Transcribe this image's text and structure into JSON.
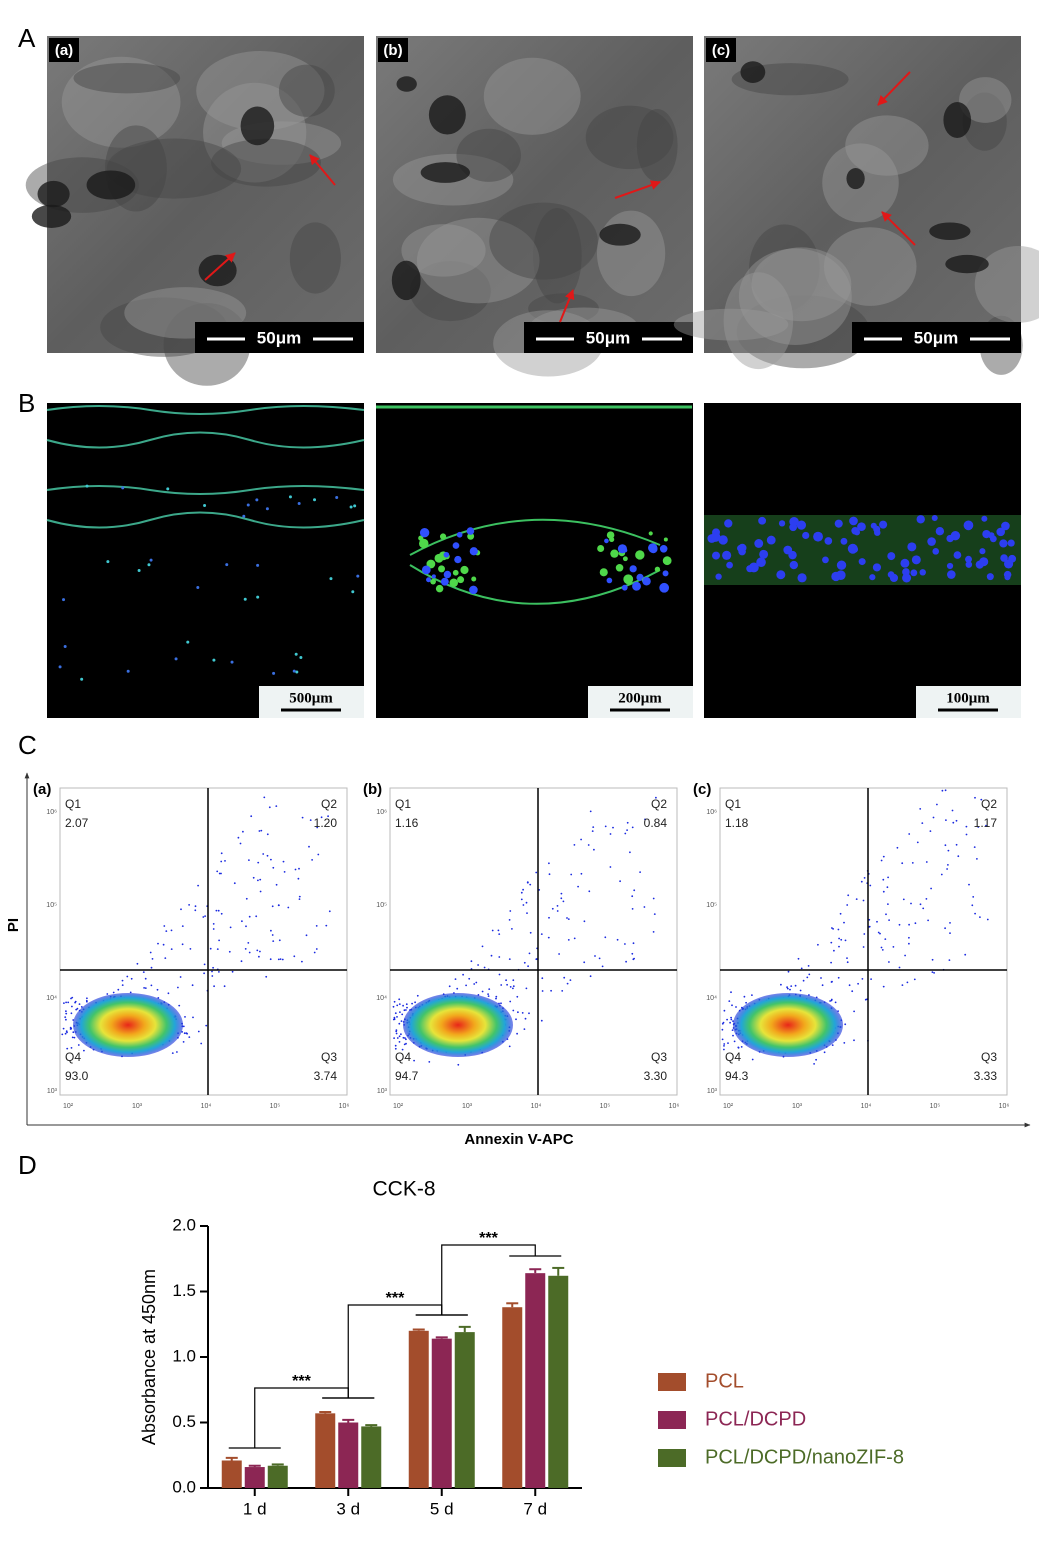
{
  "figure": {
    "panel_labels": [
      "A",
      "B",
      "C",
      "D"
    ],
    "sem": {
      "labels": [
        "(a)",
        "(b)",
        "(c)"
      ],
      "scale_bar": "50μm"
    },
    "fluorescence": {
      "scale_bars": [
        "500μm",
        "200μm",
        "100μm"
      ]
    },
    "flow": {
      "labels": [
        "(a)",
        "(b)",
        "(c)"
      ],
      "y_label": "PI",
      "x_label": "Annexin V-APC",
      "xticks": [
        "10²",
        "10³",
        "10⁴",
        "10⁵",
        "10⁶"
      ],
      "yticks": [
        "10⁶",
        "10⁵",
        "10⁴",
        "10³"
      ],
      "plots": [
        {
          "Q1": [
            "Q1",
            "2.07"
          ],
          "Q2": [
            "Q2",
            "1.20"
          ],
          "Q3": [
            "Q3",
            "3.74"
          ],
          "Q4": [
            "Q4",
            "93.0"
          ]
        },
        {
          "Q1": [
            "Q1",
            "1.16"
          ],
          "Q2": [
            "Q2",
            "0.84"
          ],
          "Q3": [
            "Q3",
            "3.30"
          ],
          "Q4": [
            "Q4",
            "94.7"
          ]
        },
        {
          "Q1": [
            "Q1",
            "1.18"
          ],
          "Q2": [
            "Q2",
            "1.17"
          ],
          "Q3": [
            "Q3",
            "3.33"
          ],
          "Q4": [
            "Q4",
            "94.3"
          ]
        }
      ]
    }
  },
  "chart_data": {
    "type": "bar",
    "title": "CCK-8",
    "y_label": "Absorbance at 450nm",
    "categories": [
      "1 d",
      "3 d",
      "5 d",
      "7 d"
    ],
    "series": [
      {
        "name": "PCL",
        "color": "#a34d2c",
        "values": [
          0.21,
          0.57,
          1.2,
          1.38
        ],
        "errors": [
          0.02,
          0.01,
          0.01,
          0.03
        ]
      },
      {
        "name": "PCL/DCPD",
        "color": "#8c2654",
        "values": [
          0.16,
          0.5,
          1.14,
          1.64
        ],
        "errors": [
          0.01,
          0.02,
          0.01,
          0.03
        ]
      },
      {
        "name": "PCL/DCPD/nanoZIF-8",
        "color": "#4c6b27",
        "values": [
          0.17,
          0.47,
          1.19,
          1.62
        ],
        "errors": [
          0.01,
          0.01,
          0.04,
          0.06
        ]
      }
    ],
    "ylim": [
      0,
      2
    ],
    "yticks": [
      {
        "value": 0,
        "label": "0.0"
      },
      0.5,
      {
        "value": 1,
        "label": "1.0"
      },
      1.5,
      {
        "value": 2,
        "label": "2.0"
      }
    ],
    "annotations": [
      "***",
      "***",
      "***"
    ]
  }
}
